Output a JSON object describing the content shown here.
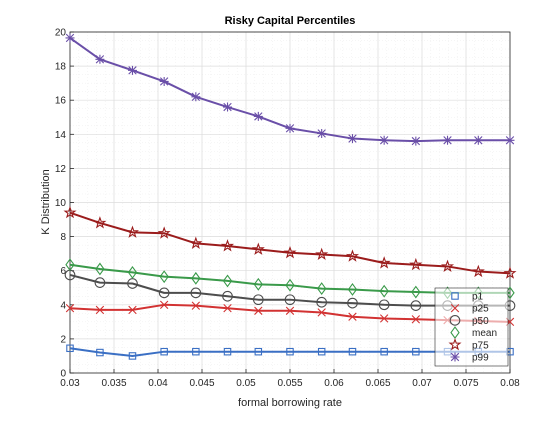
{
  "chart_data": {
    "type": "line",
    "title": "Risky Capital Percentiles",
    "xlabel": "formal borrowing rate",
    "ylabel": "K Distribution",
    "xlim": [
      0.03,
      0.08
    ],
    "ylim": [
      0,
      20
    ],
    "xticks": [
      "0.03",
      "0.035",
      "0.04",
      "0.045",
      "0.05",
      "0.055",
      "0.06",
      "0.065",
      "0.07",
      "0.075",
      "0.08"
    ],
    "yticks": [
      "0",
      "2",
      "4",
      "6",
      "8",
      "10",
      "12",
      "14",
      "16",
      "18",
      "20"
    ],
    "grid": true,
    "legend_position": "bottom-right",
    "x": [
      0.03,
      0.0334,
      0.0371,
      0.0407,
      0.0443,
      0.0479,
      0.0514,
      0.055,
      0.0586,
      0.0621,
      0.0657,
      0.0693,
      0.0729,
      0.0764,
      0.08
    ],
    "series": [
      {
        "name": "p1",
        "marker": "square",
        "color": "#3a6fc4",
        "values": [
          1.45,
          1.2,
          1.0,
          1.25,
          1.25,
          1.25,
          1.25,
          1.25,
          1.25,
          1.25,
          1.25,
          1.25,
          1.25,
          1.25,
          1.25
        ]
      },
      {
        "name": "p25",
        "marker": "x",
        "color": "#d23232",
        "values": [
          3.8,
          3.7,
          3.7,
          4.0,
          3.95,
          3.8,
          3.65,
          3.65,
          3.55,
          3.3,
          3.2,
          3.15,
          3.1,
          3.05,
          3.0
        ]
      },
      {
        "name": "p50",
        "marker": "circle",
        "color": "#4d4d4d",
        "values": [
          5.75,
          5.3,
          5.25,
          4.7,
          4.7,
          4.5,
          4.3,
          4.3,
          4.15,
          4.1,
          4.0,
          3.95,
          3.95,
          3.95,
          3.95
        ]
      },
      {
        "name": "mean",
        "marker": "diamond",
        "color": "#3a9a4a",
        "values": [
          6.35,
          6.1,
          5.9,
          5.65,
          5.55,
          5.4,
          5.2,
          5.15,
          4.95,
          4.9,
          4.8,
          4.75,
          4.7,
          4.7,
          4.7
        ]
      },
      {
        "name": "p75",
        "marker": "star",
        "color": "#9b1c1c",
        "values": [
          9.4,
          8.8,
          8.25,
          8.2,
          7.6,
          7.45,
          7.25,
          7.05,
          6.95,
          6.85,
          6.45,
          6.35,
          6.25,
          5.95,
          5.85
        ]
      },
      {
        "name": "p99",
        "marker": "asterisk",
        "color": "#6a4fa8",
        "values": [
          19.65,
          18.4,
          17.75,
          17.1,
          16.2,
          15.6,
          15.05,
          14.35,
          14.05,
          13.75,
          13.65,
          13.6,
          13.65,
          13.65,
          13.65
        ]
      }
    ]
  }
}
